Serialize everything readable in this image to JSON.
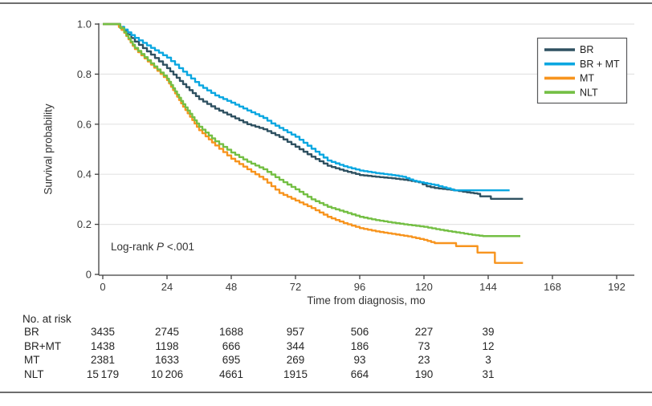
{
  "chart_data": {
    "type": "line",
    "subtype": "kaplan-meier-step",
    "title": "",
    "xlabel": "Time from diagnosis, mo",
    "ylabel": "Survival probability",
    "xlim": [
      0,
      198
    ],
    "ylim": [
      0,
      1.0
    ],
    "xticks": [
      0,
      24,
      48,
      72,
      96,
      120,
      144,
      168,
      192
    ],
    "yticks": [
      0,
      0.2,
      0.4,
      0.6,
      0.8,
      1.0
    ],
    "ytick_labels": [
      "0",
      "0.2",
      "0.4",
      "0.6",
      "0.8",
      "1.0"
    ],
    "grid": "horizontal",
    "legend_position": "top-right",
    "annotation": "Log-rank P <.001",
    "annotation_parts": {
      "prefix": "Log-rank ",
      "italic": "P",
      "suffix": " <.001"
    },
    "series": [
      {
        "name": "BR",
        "color": "#2f5161",
        "points": [
          [
            0,
            1
          ],
          [
            5,
            1
          ],
          [
            8,
            0.972
          ],
          [
            12,
            0.93
          ],
          [
            18,
            0.878
          ],
          [
            24,
            0.824
          ],
          [
            30,
            0.76
          ],
          [
            36,
            0.7
          ],
          [
            42,
            0.662
          ],
          [
            48,
            0.631
          ],
          [
            54,
            0.6
          ],
          [
            60,
            0.58
          ],
          [
            66,
            0.549
          ],
          [
            72,
            0.51
          ],
          [
            78,
            0.47
          ],
          [
            84,
            0.434
          ],
          [
            90,
            0.414
          ],
          [
            96,
            0.397
          ],
          [
            102,
            0.39
          ],
          [
            108,
            0.384
          ],
          [
            114,
            0.376
          ],
          [
            118,
            0.368
          ],
          [
            121,
            0.352
          ],
          [
            124,
            0.345
          ],
          [
            130,
            0.338
          ],
          [
            136,
            0.328
          ],
          [
            140,
            0.322
          ],
          [
            141,
            0.312
          ],
          [
            144,
            0.312
          ],
          [
            145,
            0.302
          ],
          [
            157,
            0.302
          ]
        ]
      },
      {
        "name": "BR + MT",
        "color": "#0aa7e1",
        "points": [
          [
            0,
            1
          ],
          [
            5,
            1
          ],
          [
            8,
            0.978
          ],
          [
            12,
            0.945
          ],
          [
            18,
            0.905
          ],
          [
            24,
            0.866
          ],
          [
            30,
            0.81
          ],
          [
            36,
            0.755
          ],
          [
            42,
            0.715
          ],
          [
            48,
            0.686
          ],
          [
            54,
            0.655
          ],
          [
            60,
            0.625
          ],
          [
            63,
            0.603
          ],
          [
            66,
            0.585
          ],
          [
            72,
            0.55
          ],
          [
            78,
            0.502
          ],
          [
            84,
            0.455
          ],
          [
            90,
            0.432
          ],
          [
            96,
            0.415
          ],
          [
            102,
            0.405
          ],
          [
            108,
            0.397
          ],
          [
            112,
            0.39
          ],
          [
            116,
            0.374
          ],
          [
            120,
            0.365
          ],
          [
            124,
            0.357
          ],
          [
            127,
            0.348
          ],
          [
            130,
            0.34
          ],
          [
            131,
            0.336
          ],
          [
            152,
            0.336
          ]
        ]
      },
      {
        "name": "MT",
        "color": "#f7941e",
        "points": [
          [
            0,
            1
          ],
          [
            5,
            1
          ],
          [
            8,
            0.965
          ],
          [
            12,
            0.9
          ],
          [
            18,
            0.838
          ],
          [
            24,
            0.776
          ],
          [
            30,
            0.67
          ],
          [
            36,
            0.576
          ],
          [
            42,
            0.515
          ],
          [
            48,
            0.462
          ],
          [
            54,
            0.42
          ],
          [
            60,
            0.38
          ],
          [
            66,
            0.325
          ],
          [
            72,
            0.295
          ],
          [
            78,
            0.265
          ],
          [
            84,
            0.23
          ],
          [
            90,
            0.205
          ],
          [
            96,
            0.185
          ],
          [
            102,
            0.172
          ],
          [
            108,
            0.162
          ],
          [
            114,
            0.152
          ],
          [
            120,
            0.138
          ],
          [
            124,
            0.125
          ],
          [
            132,
            0.125
          ],
          [
            132,
            0.113
          ],
          [
            140,
            0.113
          ],
          [
            140,
            0.087
          ],
          [
            146.5,
            0.087
          ],
          [
            146.5,
            0.046
          ],
          [
            157,
            0.046
          ]
        ]
      },
      {
        "name": "NLT",
        "color": "#74bf44",
        "points": [
          [
            0,
            1
          ],
          [
            5,
            1
          ],
          [
            8,
            0.968
          ],
          [
            12,
            0.905
          ],
          [
            18,
            0.843
          ],
          [
            24,
            0.782
          ],
          [
            30,
            0.68
          ],
          [
            36,
            0.59
          ],
          [
            42,
            0.532
          ],
          [
            48,
            0.487
          ],
          [
            54,
            0.45
          ],
          [
            60,
            0.42
          ],
          [
            66,
            0.378
          ],
          [
            72,
            0.34
          ],
          [
            78,
            0.3
          ],
          [
            84,
            0.27
          ],
          [
            90,
            0.25
          ],
          [
            96,
            0.23
          ],
          [
            102,
            0.217
          ],
          [
            108,
            0.207
          ],
          [
            114,
            0.198
          ],
          [
            120,
            0.19
          ],
          [
            126,
            0.178
          ],
          [
            132,
            0.168
          ],
          [
            138,
            0.158
          ],
          [
            142,
            0.153
          ],
          [
            156,
            0.153
          ]
        ]
      }
    ]
  },
  "risk_table": {
    "header": "No. at risk",
    "time_points": [
      0,
      24,
      48,
      72,
      96,
      120,
      144
    ],
    "rows": [
      {
        "label": "BR",
        "counts": [
          "3435",
          "2745",
          "1688",
          "957",
          "506",
          "227",
          "39"
        ]
      },
      {
        "label": "BR+MT",
        "counts": [
          "1438",
          "1198",
          "666",
          "344",
          "186",
          "73",
          "12"
        ]
      },
      {
        "label": "MT",
        "counts": [
          "2381",
          "1633",
          "695",
          "269",
          "93",
          "23",
          "3"
        ]
      },
      {
        "label": "NLT",
        "counts": [
          "15 179",
          "10 206",
          "4661",
          "1915",
          "664",
          "190",
          "31"
        ]
      }
    ]
  }
}
